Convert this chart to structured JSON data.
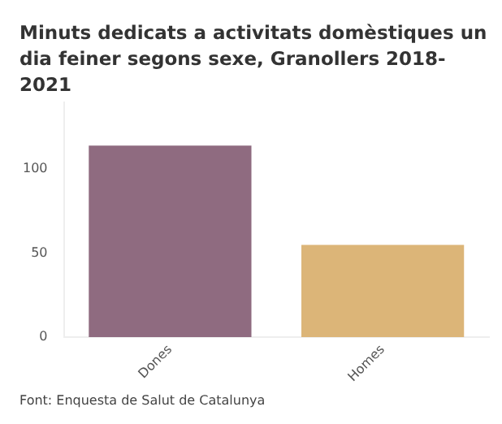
{
  "chart_data": {
    "type": "bar",
    "title": "Minuts dedicats a activitats domèstiques un dia feiner segons sexe, Granollers 2018-2021",
    "categories": [
      "Dones",
      "Homes"
    ],
    "values": [
      114,
      55
    ],
    "colors": [
      "#8f6b80",
      "#dcb578"
    ],
    "ylim": [
      0,
      140
    ],
    "yticks": [
      0,
      50,
      100
    ],
    "grid": false,
    "legend": false,
    "annotations": [
      "Font: Enquesta de Salut de Catalunya"
    ]
  }
}
